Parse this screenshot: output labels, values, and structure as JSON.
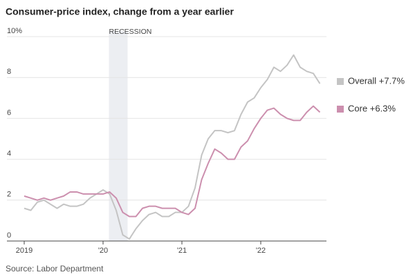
{
  "chart_data": {
    "type": "line",
    "title": "Consumer-price index, change from a year earlier",
    "annotation": "RECESSION",
    "source": "Source: Labor Department",
    "categories": [
      "2019",
      null,
      null,
      null,
      null,
      null,
      null,
      null,
      null,
      null,
      null,
      null,
      "'20",
      null,
      null,
      null,
      null,
      null,
      null,
      null,
      null,
      null,
      null,
      null,
      "'21",
      null,
      null,
      null,
      null,
      null,
      null,
      null,
      null,
      null,
      null,
      null,
      "'22",
      null,
      null,
      null,
      null,
      null,
      null,
      null,
      null,
      null
    ],
    "series": [
      {
        "name": "Overall +7.7%",
        "color": "#c4c4c4",
        "values": [
          1.6,
          1.5,
          1.9,
          2.0,
          1.8,
          1.6,
          1.8,
          1.7,
          1.7,
          1.8,
          2.1,
          2.3,
          2.5,
          2.3,
          1.5,
          0.3,
          0.1,
          0.6,
          1.0,
          1.3,
          1.4,
          1.2,
          1.2,
          1.4,
          1.4,
          1.7,
          2.6,
          4.2,
          5.0,
          5.4,
          5.4,
          5.3,
          5.4,
          6.2,
          6.8,
          7.0,
          7.5,
          7.9,
          8.5,
          8.3,
          8.6,
          9.1,
          8.5,
          8.3,
          8.2,
          7.7
        ]
      },
      {
        "name": "Core +6.3%",
        "color": "#cc8fae",
        "values": [
          2.2,
          2.1,
          2.0,
          2.1,
          2.0,
          2.1,
          2.2,
          2.4,
          2.4,
          2.3,
          2.3,
          2.3,
          2.3,
          2.4,
          2.1,
          1.4,
          1.2,
          1.2,
          1.6,
          1.7,
          1.7,
          1.6,
          1.6,
          1.6,
          1.4,
          1.3,
          1.6,
          3.0,
          3.8,
          4.5,
          4.3,
          4.0,
          4.0,
          4.6,
          4.9,
          5.5,
          6.0,
          6.4,
          6.5,
          6.2,
          6.0,
          5.9,
          5.9,
          6.3,
          6.6,
          6.3
        ]
      }
    ],
    "ylim": [
      0,
      10
    ],
    "yticks": [
      0,
      2,
      4,
      6,
      8,
      {
        "value": 10,
        "label": "10%"
      }
    ],
    "grid": true
  }
}
